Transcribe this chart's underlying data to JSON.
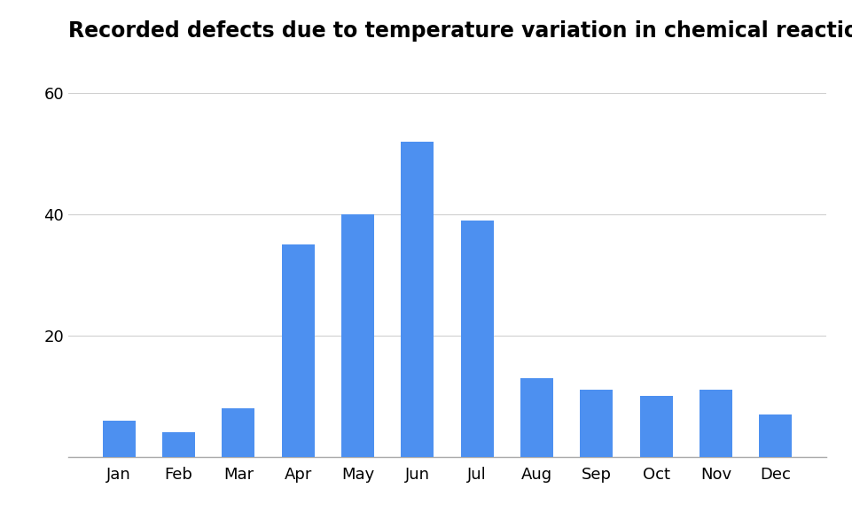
{
  "title": "Recorded defects due to temperature variation in chemical reaction",
  "categories": [
    "Jan",
    "Feb",
    "Mar",
    "Apr",
    "May",
    "Jun",
    "Jul",
    "Aug",
    "Sep",
    "Oct",
    "Nov",
    "Dec"
  ],
  "values": [
    6,
    4,
    8,
    35,
    40,
    52,
    39,
    13,
    11,
    10,
    11,
    7
  ],
  "bar_color": "#4d90f0",
  "background_color": "#ffffff",
  "ylim": [
    0,
    60
  ],
  "yticks": [
    0,
    20,
    40,
    60
  ],
  "title_fontsize": 17,
  "tick_fontsize": 13,
  "grid_color": "#d0d0d0",
  "bar_width": 0.55
}
